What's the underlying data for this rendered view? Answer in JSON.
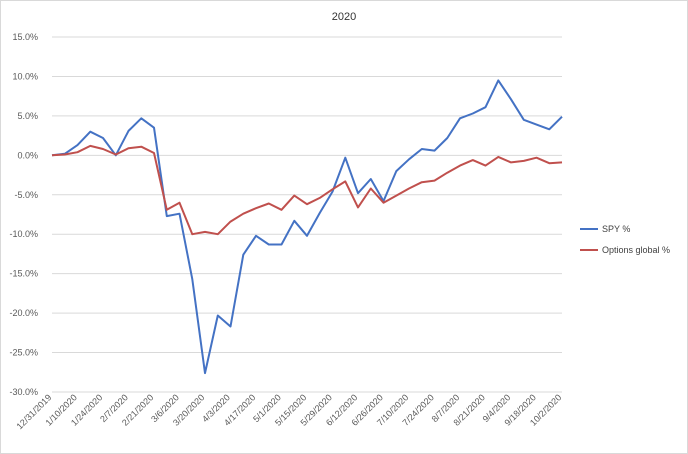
{
  "chart_data": {
    "type": "line",
    "title": "2020",
    "xlabel": "",
    "ylabel": "",
    "ylim": [
      -30,
      15
    ],
    "ytick_step": 5,
    "y_format": "percent_one_decimal",
    "grid": "horizontal",
    "legend_position": "right",
    "x": [
      "12/31/2019",
      "1/3/2020",
      "1/10/2020",
      "1/17/2020",
      "1/24/2020",
      "1/31/2020",
      "2/7/2020",
      "2/14/2020",
      "2/21/2020",
      "2/28/2020",
      "3/6/2020",
      "3/13/2020",
      "3/20/2020",
      "3/27/2020",
      "4/3/2020",
      "4/10/2020",
      "4/17/2020",
      "4/24/2020",
      "5/1/2020",
      "5/8/2020",
      "5/15/2020",
      "5/22/2020",
      "5/29/2020",
      "6/5/2020",
      "6/12/2020",
      "6/19/2020",
      "6/26/2020",
      "7/3/2020",
      "7/10/2020",
      "7/17/2020",
      "7/24/2020",
      "7/31/2020",
      "8/7/2020",
      "8/14/2020",
      "8/21/2020",
      "8/28/2020",
      "9/4/2020",
      "9/11/2020",
      "9/18/2020",
      "9/25/2020",
      "10/2/2020"
    ],
    "tick_labels": [
      "12/31/2019",
      "1/10/2020",
      "1/24/2020",
      "2/7/2020",
      "2/21/2020",
      "3/6/2020",
      "3/20/2020",
      "4/3/2020",
      "4/17/2020",
      "5/1/2020",
      "5/15/2020",
      "5/29/2020",
      "6/12/2020",
      "6/26/2020",
      "7/10/2020",
      "7/24/2020",
      "8/7/2020",
      "8/21/2020",
      "9/4/2020",
      "9/18/2020",
      "10/2/2020"
    ],
    "series": [
      {
        "name": "SPY %",
        "color": "#4472C4",
        "values": [
          0.0,
          0.2,
          1.3,
          3.0,
          2.2,
          0.0,
          3.1,
          4.7,
          3.5,
          -7.7,
          -7.4,
          -15.7,
          -27.6,
          -20.3,
          -21.7,
          -12.6,
          -10.2,
          -11.3,
          -11.3,
          -8.3,
          -10.2,
          -7.3,
          -4.6,
          -0.3,
          -4.8,
          -3.0,
          -5.8,
          -2.0,
          -0.5,
          0.8,
          0.6,
          2.2,
          4.7,
          5.3,
          6.1,
          9.5,
          7.1,
          4.5,
          3.9,
          3.3,
          4.9
        ]
      },
      {
        "name": "Options global %",
        "color": "#C0504D",
        "values": [
          0.0,
          0.1,
          0.4,
          1.2,
          0.8,
          0.1,
          0.9,
          1.1,
          0.3,
          -6.9,
          -6.0,
          -10.0,
          -9.7,
          -10.0,
          -8.4,
          -7.4,
          -6.7,
          -6.1,
          -6.9,
          -5.1,
          -6.2,
          -5.4,
          -4.3,
          -3.3,
          -6.6,
          -4.2,
          -6.0,
          -5.1,
          -4.2,
          -3.4,
          -3.2,
          -2.2,
          -1.3,
          -0.6,
          -1.3,
          -0.2,
          -0.9,
          -0.7,
          -0.3,
          -1.0,
          -0.9
        ]
      }
    ]
  }
}
